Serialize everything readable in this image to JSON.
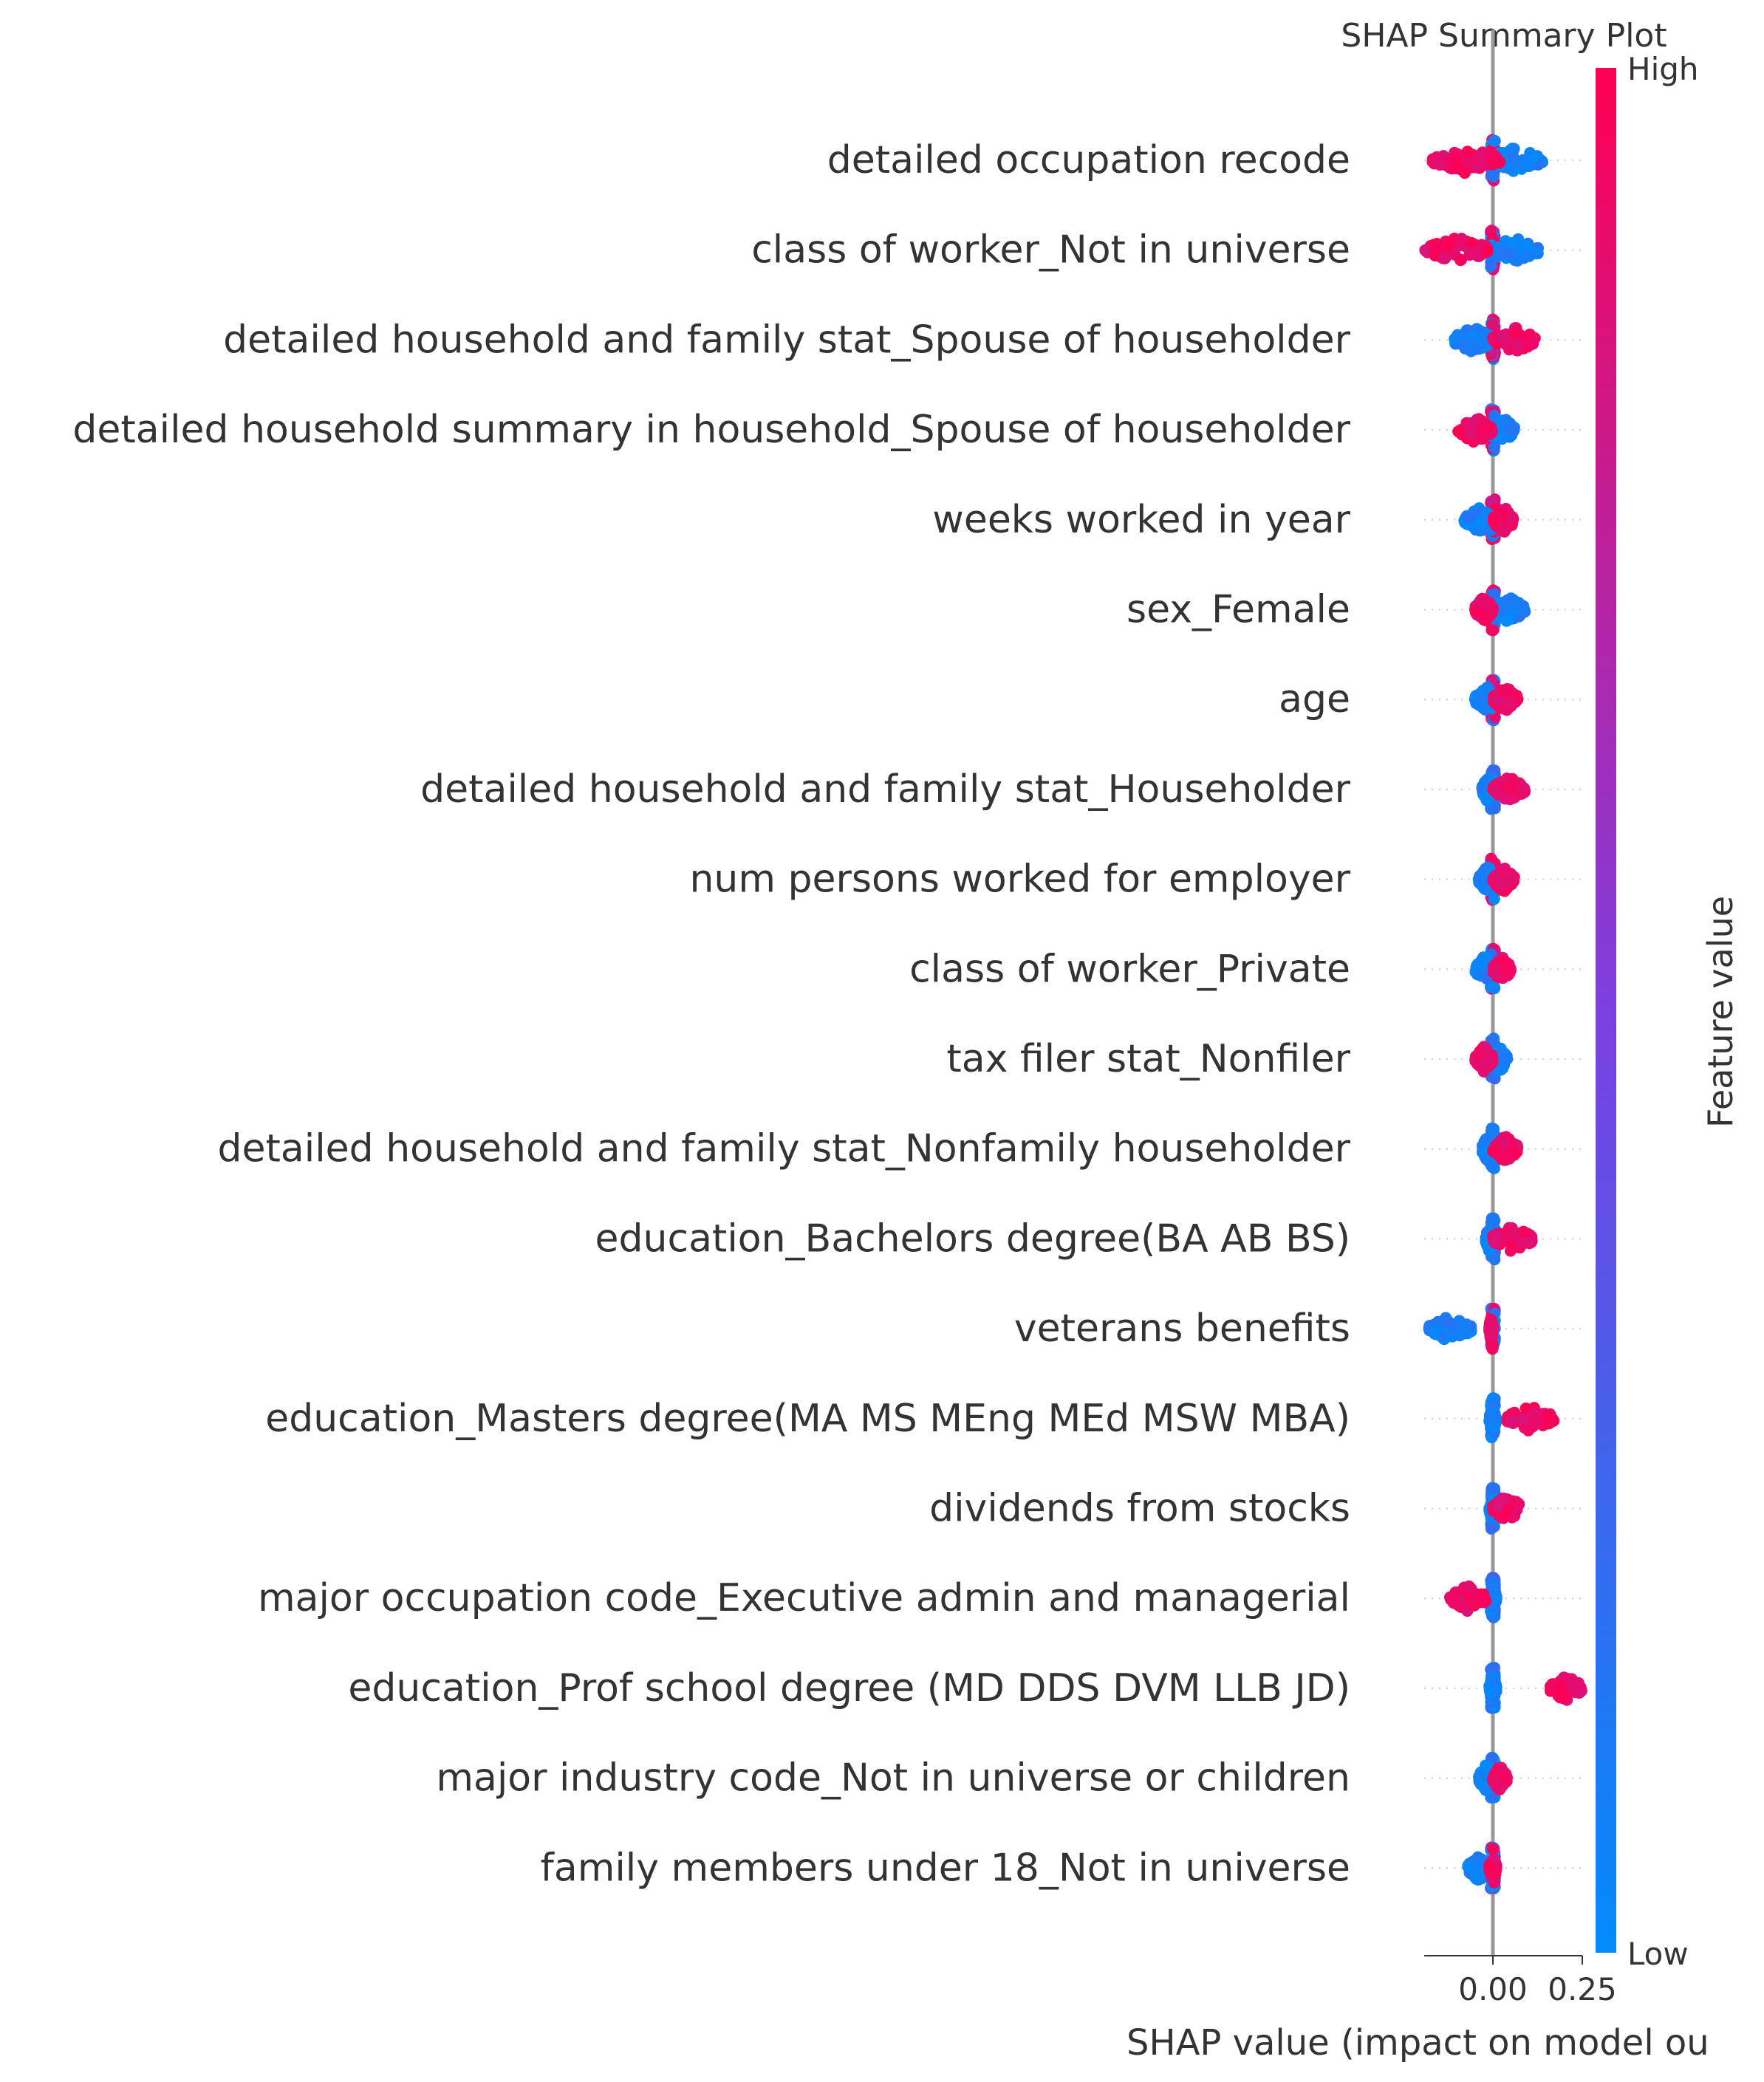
{
  "chart_data": {
    "type": "scatter",
    "title": "SHAP Summary Plot",
    "xlabel": "SHAP value (impact on model ou",
    "x_ticks": [
      0.0,
      0.25
    ],
    "x_tick_labels": [
      "0.00",
      "0.25"
    ],
    "xlim": [
      -0.2,
      0.27
    ],
    "zero_line": 0.0,
    "grid": false,
    "colorbar": {
      "label": "Feature value",
      "high_label": "High",
      "low_label": "Low",
      "low_color": "#008bfb",
      "mid_color": "#7c3fe0",
      "high_color": "#ff0052"
    },
    "features": [
      {
        "name": "detailed occupation recode",
        "spread": [
          -0.17,
          0.14
        ],
        "low_side": [
          -0.02,
          0.14
        ],
        "high_side": [
          -0.17,
          0.02
        ]
      },
      {
        "name": "class of worker_Not in universe",
        "spread": [
          -0.19,
          0.13
        ],
        "low_side": [
          -0.02,
          0.13
        ],
        "high_side": [
          -0.19,
          -0.01
        ]
      },
      {
        "name": "detailed household and family stat_Spouse of householder",
        "spread": [
          -0.11,
          0.12
        ],
        "low_side": [
          -0.11,
          0.0
        ],
        "high_side": [
          0.0,
          0.12
        ]
      },
      {
        "name": "detailed household summary in household_Spouse of householder",
        "spread": [
          -0.1,
          0.06
        ],
        "low_side": [
          0.0,
          0.06
        ],
        "high_side": [
          -0.1,
          0.0
        ]
      },
      {
        "name": "weeks worked in year",
        "spread": [
          -0.08,
          0.06
        ],
        "low_side": [
          -0.08,
          0.0
        ],
        "high_side": [
          0.0,
          0.06
        ]
      },
      {
        "name": "sex_Female",
        "spread": [
          -0.05,
          0.09
        ],
        "low_side": [
          0.0,
          0.09
        ],
        "high_side": [
          -0.05,
          0.0
        ]
      },
      {
        "name": "age",
        "spread": [
          -0.05,
          0.07
        ],
        "low_side": [
          -0.05,
          0.02
        ],
        "high_side": [
          0.0,
          0.07
        ]
      },
      {
        "name": "detailed household and family stat_Householder",
        "spread": [
          -0.03,
          0.09
        ],
        "low_side": [
          -0.03,
          0.0
        ],
        "high_side": [
          0.0,
          0.09
        ]
      },
      {
        "name": "num persons worked for employer",
        "spread": [
          -0.04,
          0.06
        ],
        "low_side": [
          -0.04,
          0.01
        ],
        "high_side": [
          0.0,
          0.06
        ]
      },
      {
        "name": "class of worker_Private",
        "spread": [
          -0.05,
          0.05
        ],
        "low_side": [
          -0.05,
          0.0
        ],
        "high_side": [
          0.0,
          0.05
        ]
      },
      {
        "name": "tax filer stat_Nonfiler",
        "spread": [
          -0.05,
          0.04
        ],
        "low_side": [
          0.0,
          0.04
        ],
        "high_side": [
          -0.05,
          0.0
        ]
      },
      {
        "name": "detailed household and family stat_Nonfamily householder",
        "spread": [
          -0.03,
          0.07
        ],
        "low_side": [
          -0.03,
          0.0
        ],
        "high_side": [
          0.0,
          0.07
        ]
      },
      {
        "name": "education_Bachelors degree(BA AB BS)",
        "spread": [
          -0.02,
          0.11
        ],
        "low_side": [
          -0.02,
          0.0
        ],
        "high_side": [
          0.0,
          0.11
        ]
      },
      {
        "name": "veterans benefits",
        "spread": [
          -0.18,
          0.0
        ],
        "low_side": [
          -0.18,
          -0.06
        ],
        "high_side": [
          -0.01,
          0.0
        ]
      },
      {
        "name": "education_Masters degree(MA MS MEng MEd MSW MBA)",
        "spread": [
          0.0,
          0.17
        ],
        "low_side": [
          -0.01,
          0.01
        ],
        "high_side": [
          0.04,
          0.17
        ]
      },
      {
        "name": "dividends from stocks",
        "spread": [
          -0.01,
          0.08
        ],
        "low_side": [
          -0.01,
          0.01
        ],
        "high_side": [
          0.0,
          0.08
        ]
      },
      {
        "name": "major occupation code_Executive admin and managerial",
        "spread": [
          -0.12,
          0.0
        ],
        "low_side": [
          -0.01,
          0.01
        ],
        "high_side": [
          -0.12,
          -0.02
        ]
      },
      {
        "name": "education_Prof school degree (MD DDS DVM LLB JD)",
        "spread": [
          0.0,
          0.25
        ],
        "low_side": [
          -0.01,
          0.01
        ],
        "high_side": [
          0.16,
          0.25
        ]
      },
      {
        "name": "major industry code_Not in universe or children",
        "spread": [
          -0.04,
          0.04
        ],
        "low_side": [
          -0.04,
          0.0
        ],
        "high_side": [
          0.0,
          0.04
        ]
      },
      {
        "name": "family members under 18_Not in universe",
        "spread": [
          -0.07,
          0.0
        ],
        "low_side": [
          -0.07,
          -0.01
        ],
        "high_side": [
          -0.01,
          0.01
        ]
      }
    ]
  }
}
